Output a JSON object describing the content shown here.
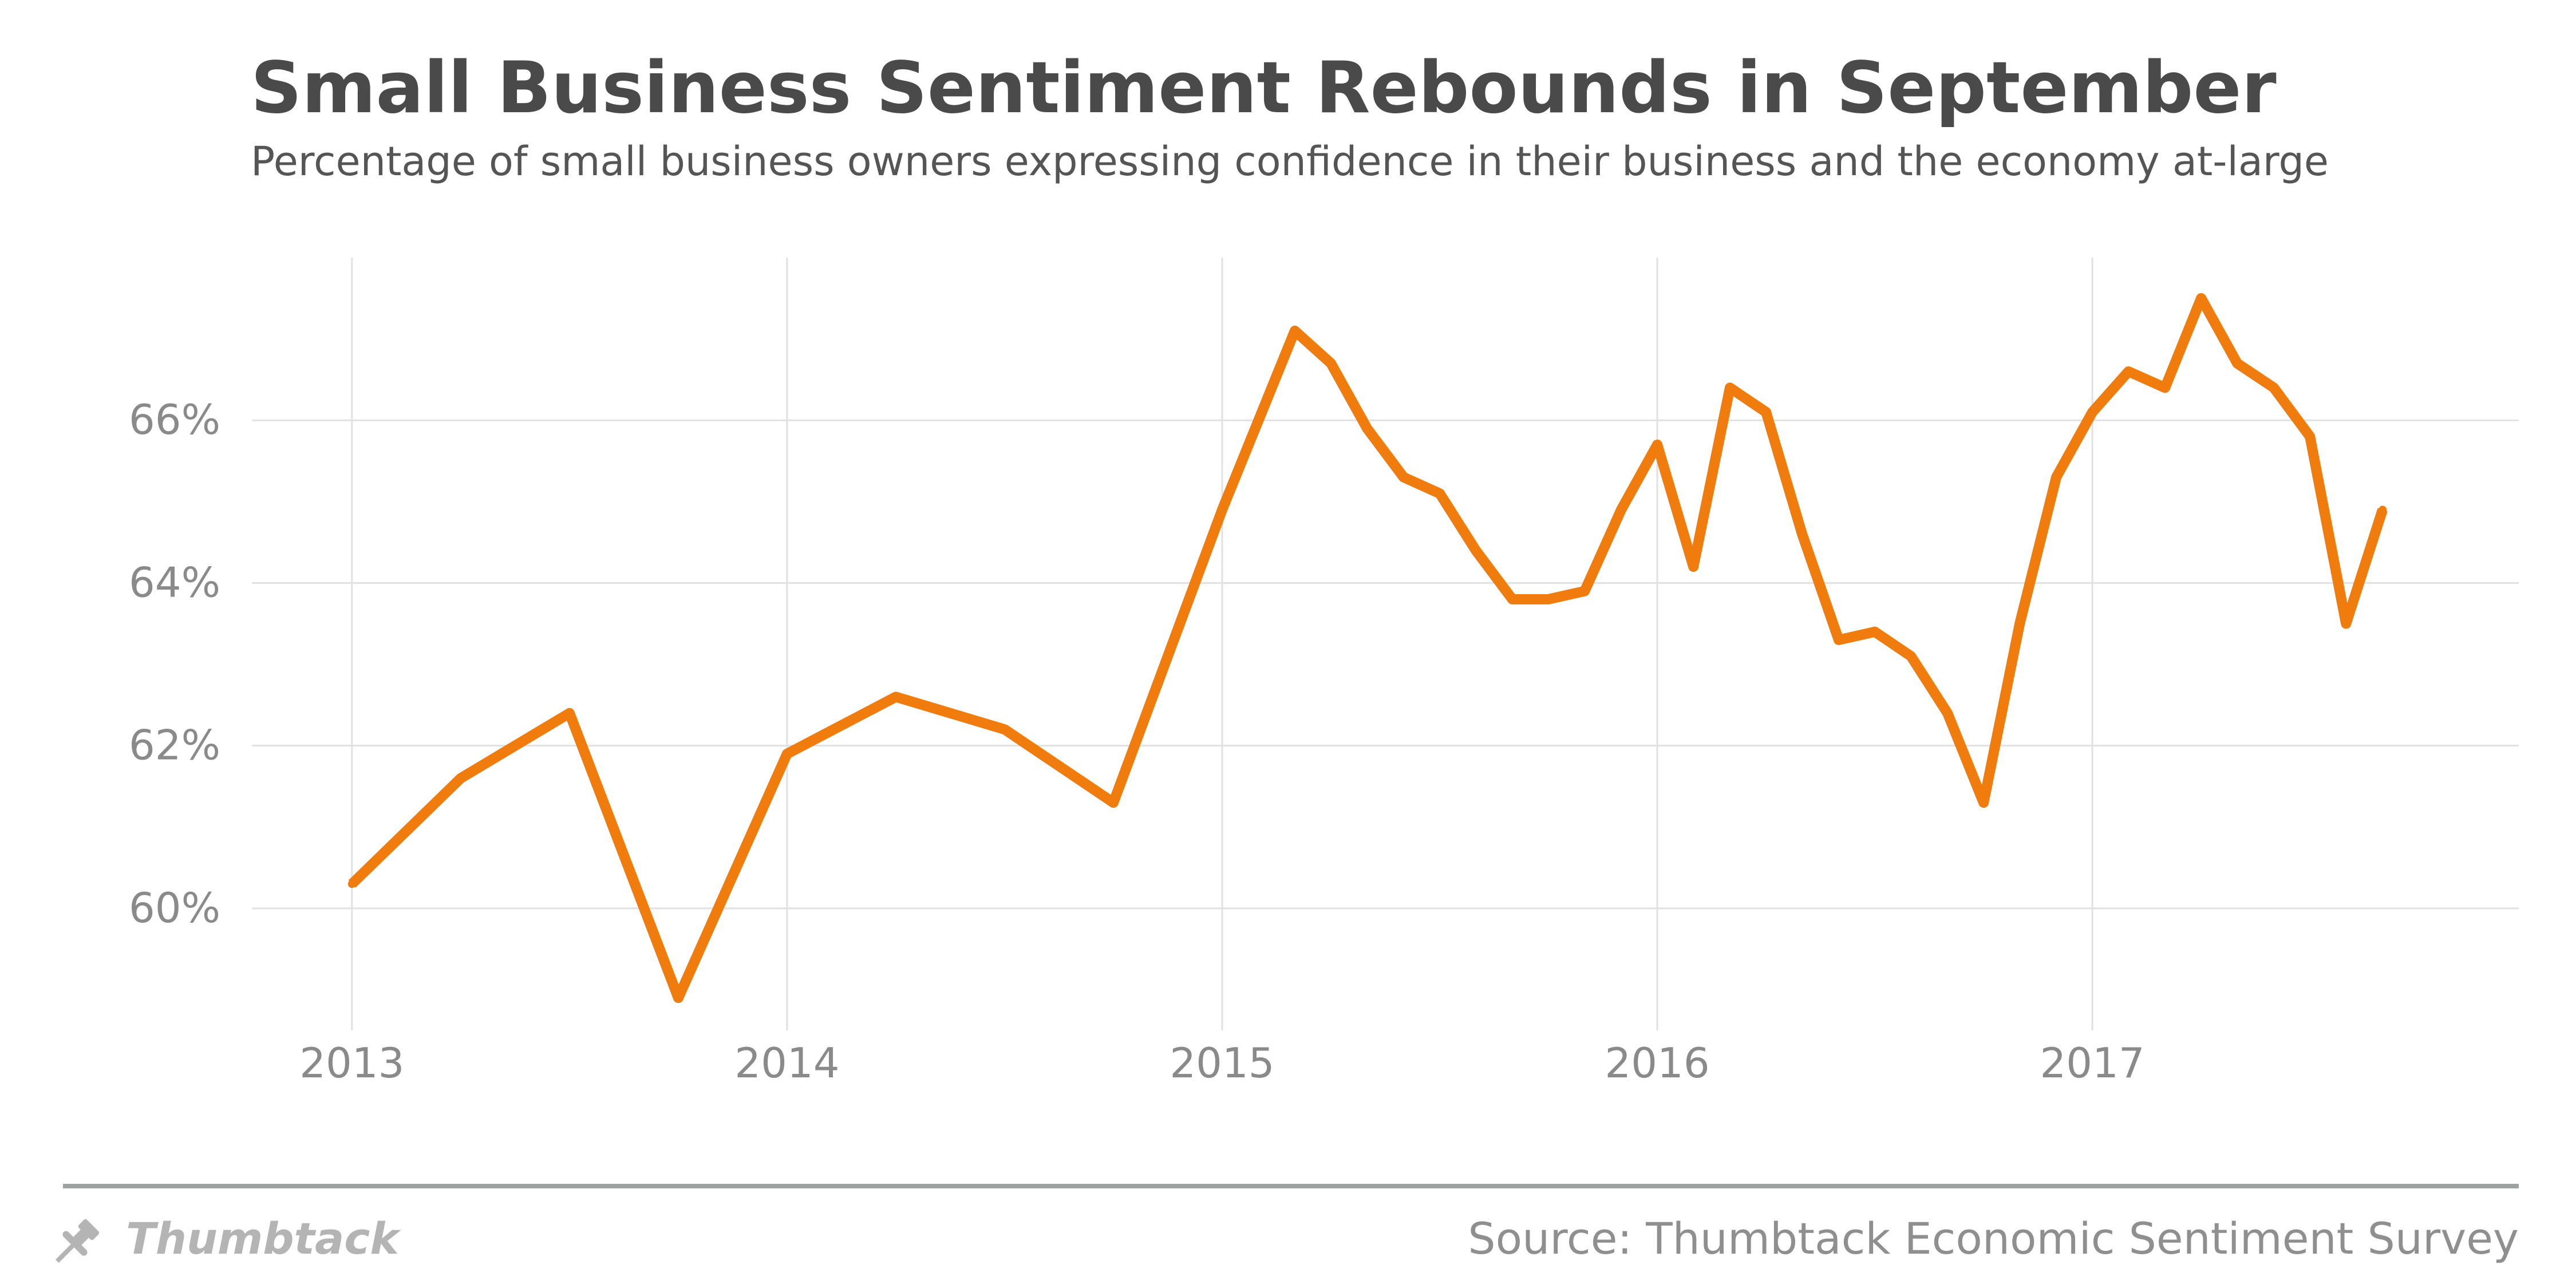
{
  "header": {
    "title": "Small Business Sentiment Rebounds in September",
    "subtitle": "Percentage of small business owners expressing confidence in their business and the economy at-large"
  },
  "footer": {
    "brand": "Thumbtack",
    "brand_icon": "pushpin-icon",
    "source": "Source: Thumbtack Economic Sentiment Survey"
  },
  "colors": {
    "line": "#f07c0e",
    "grid": "#e1e1e1",
    "divider": "#9da3a2",
    "text": "#4a4a4a",
    "muted": "#8a8a8a"
  },
  "chart_data": {
    "type": "line",
    "title": "Small Business Sentiment Rebounds in September",
    "subtitle": "Percentage of small business owners expressing confidence in their business and the economy at-large",
    "xlabel": "",
    "ylabel": "",
    "x_ticks": [
      "2013",
      "2014",
      "2015",
      "2016",
      "2017"
    ],
    "y_ticks": [
      "60%",
      "62%",
      "64%",
      "66%"
    ],
    "xlim": [
      2012.77,
      2017.98
    ],
    "ylim": [
      58.5,
      68
    ],
    "grid": {
      "vertical": true,
      "horizontal": true
    },
    "legend": "none",
    "series": [
      {
        "x": [
          2013.0,
          2013.25,
          2013.5,
          2013.75,
          2014.0,
          2014.25,
          2014.5,
          2014.75,
          2015.0,
          2015.167,
          2015.25,
          2015.333,
          2015.417,
          2015.5,
          2015.583,
          2015.667,
          2015.75,
          2015.833,
          2015.917,
          2016.0,
          2016.083,
          2016.167,
          2016.25,
          2016.333,
          2016.417,
          2016.5,
          2016.583,
          2016.667,
          2016.75,
          2016.833,
          2016.917,
          2017.0,
          2017.083,
          2017.167,
          2017.25,
          2017.333,
          2017.417,
          2017.5,
          2017.583,
          2017.667
        ],
        "y": [
          60.3,
          61.6,
          62.4,
          58.9,
          61.9,
          62.6,
          62.2,
          61.3,
          64.9,
          67.1,
          66.7,
          65.9,
          65.3,
          65.1,
          64.4,
          63.8,
          63.8,
          63.9,
          64.9,
          65.7,
          64.2,
          66.4,
          66.1,
          64.6,
          63.3,
          63.4,
          63.1,
          62.4,
          61.3,
          63.5,
          65.3,
          66.1,
          66.6,
          66.4,
          67.5,
          66.7,
          66.4,
          65.8,
          63.5,
          64.9
        ]
      }
    ]
  }
}
